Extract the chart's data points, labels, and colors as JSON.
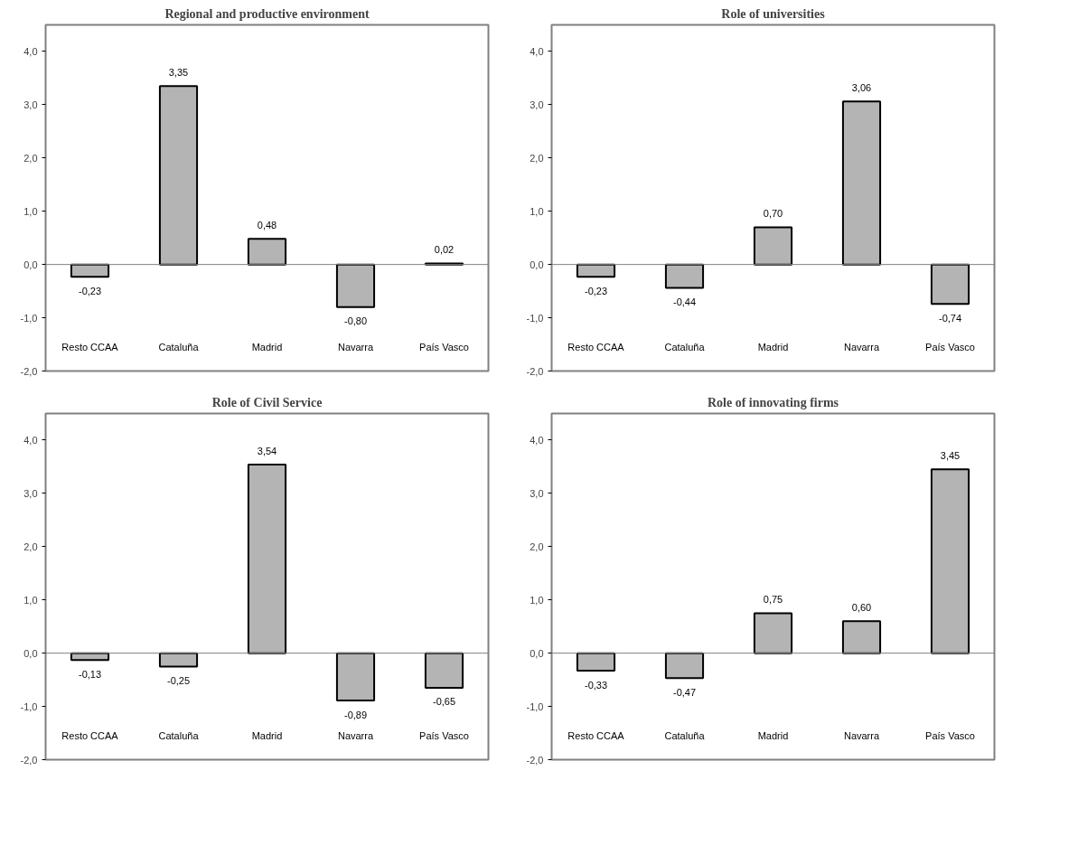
{
  "chart_data": [
    {
      "type": "bar",
      "title": "Regional and productive environment",
      "categories": [
        "Resto CCAA",
        "Cataluña",
        "Madrid",
        "Navarra",
        "País Vasco"
      ],
      "values": [
        -0.23,
        3.35,
        0.48,
        -0.8,
        0.02
      ],
      "value_labels": [
        "-0,23",
        "3,35",
        "0,48",
        "-0,80",
        "0,02"
      ],
      "color": "#b4b4b4",
      "ylim": [
        -2,
        4.5
      ],
      "yticks": [
        {
          "value": -2,
          "label": "-2,0"
        },
        {
          "value": -1,
          "label": "-1,0"
        },
        {
          "value": 0,
          "label": "0,0"
        },
        {
          "value": 1,
          "label": "1,0"
        },
        {
          "value": 2,
          "label": "2,0"
        },
        {
          "value": 3,
          "label": "3,0"
        },
        {
          "value": 4,
          "label": "4,0"
        }
      ]
    },
    {
      "type": "bar",
      "title": "Role of universities",
      "categories": [
        "Resto CCAA",
        "Cataluña",
        "Madrid",
        "Navarra",
        "País Vasco"
      ],
      "values": [
        -0.23,
        -0.44,
        0.7,
        3.06,
        -0.74
      ],
      "value_labels": [
        "-0,23",
        "-0,44",
        "0,70",
        "3,06",
        "-0,74"
      ],
      "color": "#b4b4b4",
      "ylim": [
        -2,
        4.5
      ],
      "yticks": [
        {
          "value": -2,
          "label": "-2,0"
        },
        {
          "value": -1,
          "label": "-1,0"
        },
        {
          "value": 0,
          "label": "0,0"
        },
        {
          "value": 1,
          "label": "1,0"
        },
        {
          "value": 2,
          "label": "2,0"
        },
        {
          "value": 3,
          "label": "3,0"
        },
        {
          "value": 4,
          "label": "4,0"
        }
      ]
    },
    {
      "type": "bar",
      "title": "Role of Civil Service",
      "categories": [
        "Resto CCAA",
        "Cataluña",
        "Madrid",
        "Navarra",
        "País Vasco"
      ],
      "values": [
        -0.13,
        -0.25,
        3.54,
        -0.89,
        -0.65
      ],
      "value_labels": [
        "-0,13",
        "-0,25",
        "3,54",
        "-0,89",
        "-0,65"
      ],
      "color": "#b4b4b4",
      "ylim": [
        -2,
        4.5
      ],
      "yticks": [
        {
          "value": -2,
          "label": "-2,0"
        },
        {
          "value": -1,
          "label": "-1,0"
        },
        {
          "value": 0,
          "label": "0,0"
        },
        {
          "value": 1,
          "label": "1,0"
        },
        {
          "value": 2,
          "label": "2,0"
        },
        {
          "value": 3,
          "label": "3,0"
        },
        {
          "value": 4,
          "label": "4,0"
        }
      ]
    },
    {
      "type": "bar",
      "title": "Role of innovating firms",
      "categories": [
        "Resto CCAA",
        "Cataluña",
        "Madrid",
        "Navarra",
        "País Vasco"
      ],
      "values": [
        -0.33,
        -0.47,
        0.75,
        0.6,
        3.45
      ],
      "value_labels": [
        "-0,33",
        "-0,47",
        "0,75",
        "0,60",
        "3,45"
      ],
      "color": "#b4b4b4",
      "ylim": [
        -2,
        4.5
      ],
      "yticks": [
        {
          "value": -2,
          "label": "-2,0"
        },
        {
          "value": -1,
          "label": "-1,0"
        },
        {
          "value": 0,
          "label": "0,0"
        },
        {
          "value": 1,
          "label": "1,0"
        },
        {
          "value": 2,
          "label": "2,0"
        },
        {
          "value": 3,
          "label": "3,0"
        },
        {
          "value": 4,
          "label": "4,0"
        }
      ]
    }
  ]
}
